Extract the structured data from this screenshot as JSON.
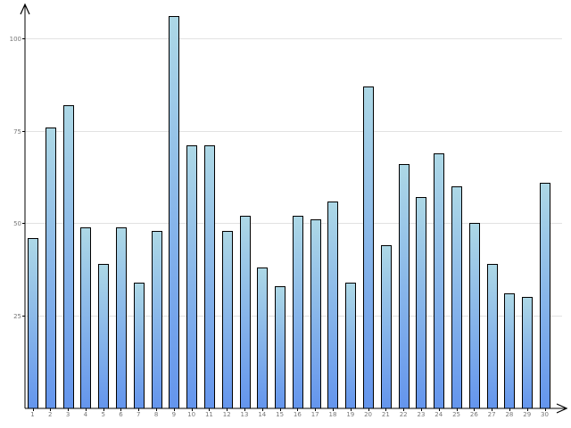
{
  "chart_data": {
    "type": "bar",
    "title": "",
    "xlabel": "",
    "ylabel": "",
    "categories": [
      "1",
      "2",
      "3",
      "4",
      "5",
      "6",
      "7",
      "8",
      "9",
      "10",
      "11",
      "12",
      "13",
      "14",
      "15",
      "16",
      "17",
      "18",
      "19",
      "20",
      "21",
      "22",
      "23",
      "24",
      "25",
      "26",
      "27",
      "28",
      "29",
      "30"
    ],
    "values": [
      46,
      76,
      82,
      49,
      39,
      49,
      34,
      48,
      106,
      71,
      71,
      48,
      52,
      38,
      33,
      52,
      51,
      56,
      34,
      87,
      44,
      66,
      57,
      69,
      60,
      50,
      39,
      31,
      30,
      61
    ],
    "yticks": [
      25,
      50,
      75,
      100
    ],
    "ytick_labels": [
      "25",
      "50",
      "75",
      "100"
    ],
    "ylim": [
      0,
      106
    ],
    "grid": true,
    "legend": "none",
    "colors": {
      "bar_top": "#ADD8E6",
      "bar_bottom": "#6495ED",
      "bar_border": "#000000",
      "grid": "#e2e2e2",
      "axis": "#000000"
    }
  }
}
